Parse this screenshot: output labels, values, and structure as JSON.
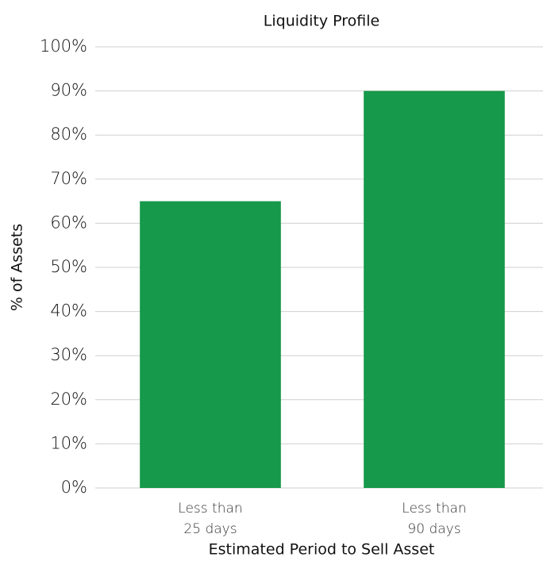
{
  "chart_data": {
    "type": "bar",
    "title": "Liquidity Profile",
    "x_label": "Estimated Period to Sell Asset",
    "y_label": "% of Assets",
    "categories": [
      [
        "Less than",
        "25 days"
      ],
      [
        "Less than",
        "90 days"
      ]
    ],
    "values": [
      65,
      90
    ],
    "color": "#16994a",
    "ylim": [
      0,
      100
    ],
    "yticks": [
      {
        "value": 0,
        "label": "0%"
      },
      {
        "value": 10,
        "label": "10%"
      },
      {
        "value": 20,
        "label": "20%"
      },
      {
        "value": 30,
        "label": "30%"
      },
      {
        "value": 40,
        "label": "40%"
      },
      {
        "value": 50,
        "label": "50%"
      },
      {
        "value": 60,
        "label": "60%"
      },
      {
        "value": 70,
        "label": "70%"
      },
      {
        "value": 80,
        "label": "80%"
      },
      {
        "value": 90,
        "label": "90%"
      },
      {
        "value": 100,
        "label": "100%"
      }
    ],
    "grid": true
  }
}
